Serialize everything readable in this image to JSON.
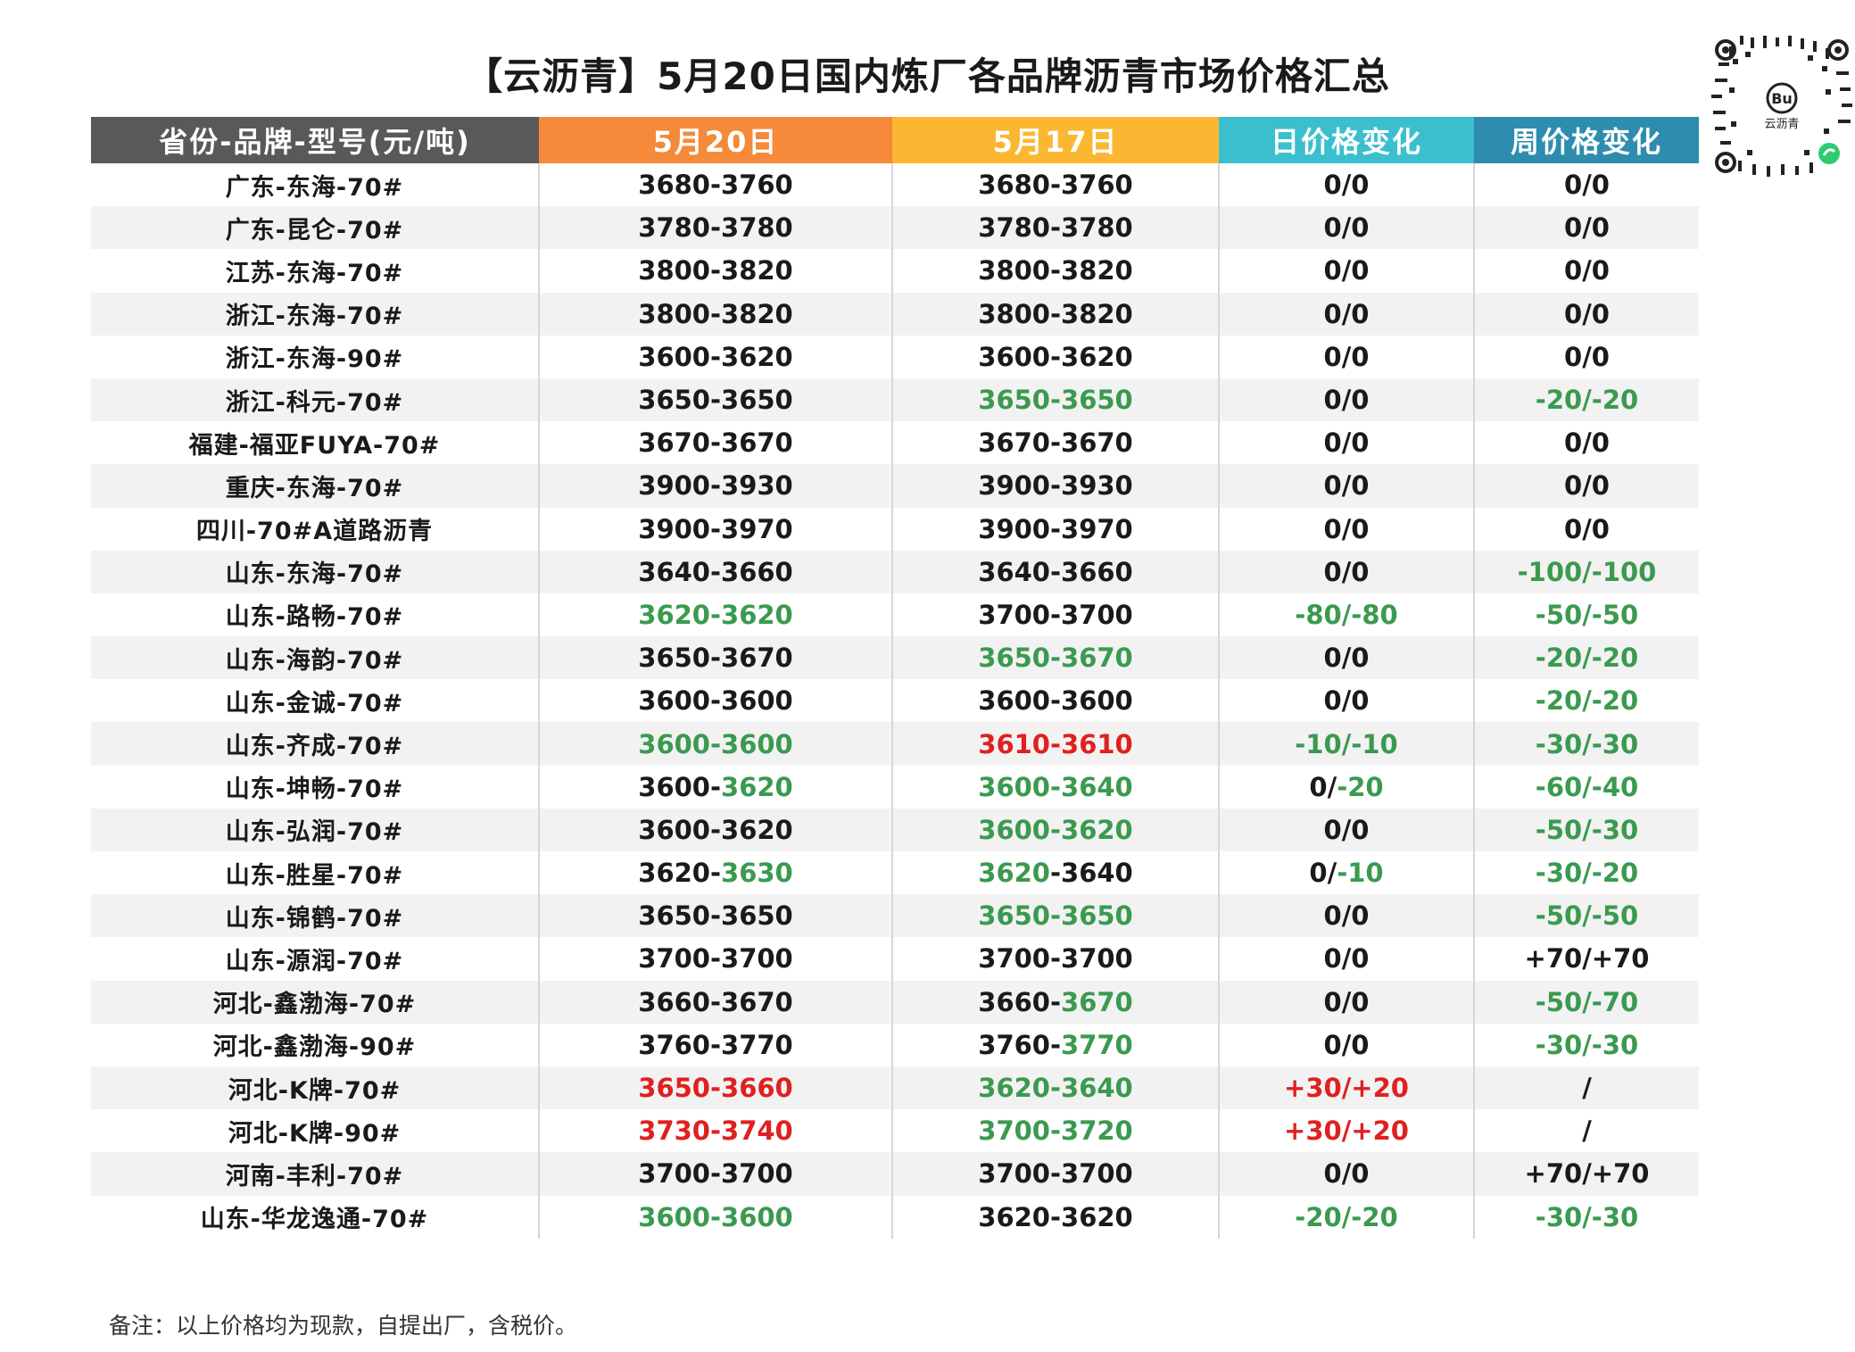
{
  "title": "【云沥青】5月20日国内炼厂各品牌沥青市场价格汇总",
  "qr": {
    "label": "云沥青",
    "icon": "miniprogram-qr-icon"
  },
  "headers": [
    "省份-品牌-型号(元/吨)",
    "5月20日",
    "5月17日",
    "日价格变化",
    "周价格变化"
  ],
  "colors": {
    "green": "#3a9a4f",
    "red": "#e02020",
    "header_gray": "#595959",
    "header_orange": "#f58a3a",
    "header_yellow": "#fbb731",
    "header_teal": "#3bbfcf",
    "header_blue": "#2e8dae"
  },
  "rows": [
    {
      "name": "广东-东海-70#",
      "cells": [
        [
          [
            "3680-3760",
            "b"
          ]
        ],
        [
          [
            "3680-3760",
            "b"
          ]
        ],
        [
          [
            "0/0",
            "b"
          ]
        ],
        [
          [
            "0/0",
            "b"
          ]
        ]
      ]
    },
    {
      "name": "广东-昆仑-70#",
      "cells": [
        [
          [
            "3780-3780",
            "b"
          ]
        ],
        [
          [
            "3780-3780",
            "b"
          ]
        ],
        [
          [
            "0/0",
            "b"
          ]
        ],
        [
          [
            "0/0",
            "b"
          ]
        ]
      ]
    },
    {
      "name": "江苏-东海-70#",
      "cells": [
        [
          [
            "3800-3820",
            "b"
          ]
        ],
        [
          [
            "3800-3820",
            "b"
          ]
        ],
        [
          [
            "0/0",
            "b"
          ]
        ],
        [
          [
            "0/0",
            "b"
          ]
        ]
      ]
    },
    {
      "name": "浙江-东海-70#",
      "cells": [
        [
          [
            "3800-3820",
            "b"
          ]
        ],
        [
          [
            "3800-3820",
            "b"
          ]
        ],
        [
          [
            "0/0",
            "b"
          ]
        ],
        [
          [
            "0/0",
            "b"
          ]
        ]
      ]
    },
    {
      "name": "浙江-东海-90#",
      "cells": [
        [
          [
            "3600-3620",
            "b"
          ]
        ],
        [
          [
            "3600-3620",
            "b"
          ]
        ],
        [
          [
            "0/0",
            "b"
          ]
        ],
        [
          [
            "0/0",
            "b"
          ]
        ]
      ]
    },
    {
      "name": "浙江-科元-70#",
      "cells": [
        [
          [
            "3650-3650",
            "b"
          ]
        ],
        [
          [
            "3650-3650",
            "g"
          ]
        ],
        [
          [
            "0/0",
            "b"
          ]
        ],
        [
          [
            "-20/-20",
            "g"
          ]
        ]
      ]
    },
    {
      "name": "福建-福亚FUYA-70#",
      "cells": [
        [
          [
            "3670-3670",
            "b"
          ]
        ],
        [
          [
            "3670-3670",
            "b"
          ]
        ],
        [
          [
            "0/0",
            "b"
          ]
        ],
        [
          [
            "0/0",
            "b"
          ]
        ]
      ]
    },
    {
      "name": "重庆-东海-70#",
      "cells": [
        [
          [
            "3900-3930",
            "b"
          ]
        ],
        [
          [
            "3900-3930",
            "b"
          ]
        ],
        [
          [
            "0/0",
            "b"
          ]
        ],
        [
          [
            "0/0",
            "b"
          ]
        ]
      ]
    },
    {
      "name": "四川-70#A道路沥青",
      "cells": [
        [
          [
            "3900-3970",
            "b"
          ]
        ],
        [
          [
            "3900-3970",
            "b"
          ]
        ],
        [
          [
            "0/0",
            "b"
          ]
        ],
        [
          [
            "0/0",
            "b"
          ]
        ]
      ]
    },
    {
      "name": "山东-东海-70#",
      "cells": [
        [
          [
            "3640-3660",
            "b"
          ]
        ],
        [
          [
            "3640-3660",
            "b"
          ]
        ],
        [
          [
            "0/0",
            "b"
          ]
        ],
        [
          [
            "-100/-100",
            "g"
          ]
        ]
      ]
    },
    {
      "name": "山东-路畅-70#",
      "cells": [
        [
          [
            "3620-3620",
            "g"
          ]
        ],
        [
          [
            "3700-3700",
            "b"
          ]
        ],
        [
          [
            "-80/-80",
            "g"
          ]
        ],
        [
          [
            "-50/-50",
            "g"
          ]
        ]
      ]
    },
    {
      "name": "山东-海韵-70#",
      "cells": [
        [
          [
            "3650-3670",
            "b"
          ]
        ],
        [
          [
            "3650-3670",
            "g"
          ]
        ],
        [
          [
            "0/0",
            "b"
          ]
        ],
        [
          [
            "-20/-20",
            "g"
          ]
        ]
      ]
    },
    {
      "name": "山东-金诚-70#",
      "cells": [
        [
          [
            "3600-3600",
            "b"
          ]
        ],
        [
          [
            "3600-3600",
            "b"
          ]
        ],
        [
          [
            "0/0",
            "b"
          ]
        ],
        [
          [
            "-20/-20",
            "g"
          ]
        ]
      ]
    },
    {
      "name": "山东-齐成-70#",
      "cells": [
        [
          [
            "3600-3600",
            "g"
          ]
        ],
        [
          [
            "3610-3610",
            "r"
          ]
        ],
        [
          [
            "-10/-10",
            "g"
          ]
        ],
        [
          [
            "-30/-30",
            "g"
          ]
        ]
      ]
    },
    {
      "name": "山东-坤畅-70#",
      "cells": [
        [
          [
            "3600-",
            "b"
          ],
          [
            "3620",
            "g"
          ]
        ],
        [
          [
            "3600-3640",
            "g"
          ]
        ],
        [
          [
            "0/",
            "b"
          ],
          [
            "-20",
            "g"
          ]
        ],
        [
          [
            "-60/-40",
            "g"
          ]
        ]
      ]
    },
    {
      "name": "山东-弘润-70#",
      "cells": [
        [
          [
            "3600-3620",
            "b"
          ]
        ],
        [
          [
            "3600-3620",
            "g"
          ]
        ],
        [
          [
            "0/0",
            "b"
          ]
        ],
        [
          [
            "-50/-30",
            "g"
          ]
        ]
      ]
    },
    {
      "name": "山东-胜星-70#",
      "cells": [
        [
          [
            "3620-",
            "b"
          ],
          [
            "3630",
            "g"
          ]
        ],
        [
          [
            "3620",
            "g"
          ],
          [
            "-3640",
            "b"
          ]
        ],
        [
          [
            "0/",
            "b"
          ],
          [
            "-10",
            "g"
          ]
        ],
        [
          [
            "-30/-20",
            "g"
          ]
        ]
      ]
    },
    {
      "name": "山东-锦鹤-70#",
      "cells": [
        [
          [
            "3650-3650",
            "b"
          ]
        ],
        [
          [
            "3650-3650",
            "g"
          ]
        ],
        [
          [
            "0/0",
            "b"
          ]
        ],
        [
          [
            "-50/-50",
            "g"
          ]
        ]
      ]
    },
    {
      "name": "山东-源润-70#",
      "cells": [
        [
          [
            "3700-3700",
            "b"
          ]
        ],
        [
          [
            "3700-3700",
            "b"
          ]
        ],
        [
          [
            "0/0",
            "b"
          ]
        ],
        [
          [
            "+70/+70",
            "b"
          ]
        ]
      ]
    },
    {
      "name": "河北-鑫渤海-70#",
      "cells": [
        [
          [
            "3660-3670",
            "b"
          ]
        ],
        [
          [
            "3660-",
            "b"
          ],
          [
            "3670",
            "g"
          ]
        ],
        [
          [
            "0/0",
            "b"
          ]
        ],
        [
          [
            "-50/-70",
            "g"
          ]
        ]
      ]
    },
    {
      "name": "河北-鑫渤海-90#",
      "cells": [
        [
          [
            "3760-3770",
            "b"
          ]
        ],
        [
          [
            "3760-",
            "b"
          ],
          [
            "3770",
            "g"
          ]
        ],
        [
          [
            "0/0",
            "b"
          ]
        ],
        [
          [
            "-30/-30",
            "g"
          ]
        ]
      ]
    },
    {
      "name": "河北-K牌-70#",
      "cells": [
        [
          [
            "3650-3660",
            "r"
          ]
        ],
        [
          [
            "3620-3640",
            "g"
          ]
        ],
        [
          [
            "+30/+20",
            "r"
          ]
        ],
        [
          [
            "/",
            "b"
          ]
        ]
      ]
    },
    {
      "name": "河北-K牌-90#",
      "cells": [
        [
          [
            "3730-3740",
            "r"
          ]
        ],
        [
          [
            "3700-3720",
            "g"
          ]
        ],
        [
          [
            "+30/+20",
            "r"
          ]
        ],
        [
          [
            "/",
            "b"
          ]
        ]
      ]
    },
    {
      "name": "河南-丰利-70#",
      "cells": [
        [
          [
            "3700-3700",
            "b"
          ]
        ],
        [
          [
            "3700-3700",
            "b"
          ]
        ],
        [
          [
            "0/0",
            "b"
          ]
        ],
        [
          [
            "+70/+70",
            "b"
          ]
        ]
      ]
    },
    {
      "name": "山东-华龙逸通-70#",
      "cells": [
        [
          [
            "3600-3600",
            "g"
          ]
        ],
        [
          [
            "3620-3620",
            "b"
          ]
        ],
        [
          [
            "-20/-20",
            "g"
          ]
        ],
        [
          [
            "-30/-30",
            "g"
          ]
        ]
      ]
    }
  ],
  "note": "备注：以上价格均为现款，自提出厂，含税价。"
}
